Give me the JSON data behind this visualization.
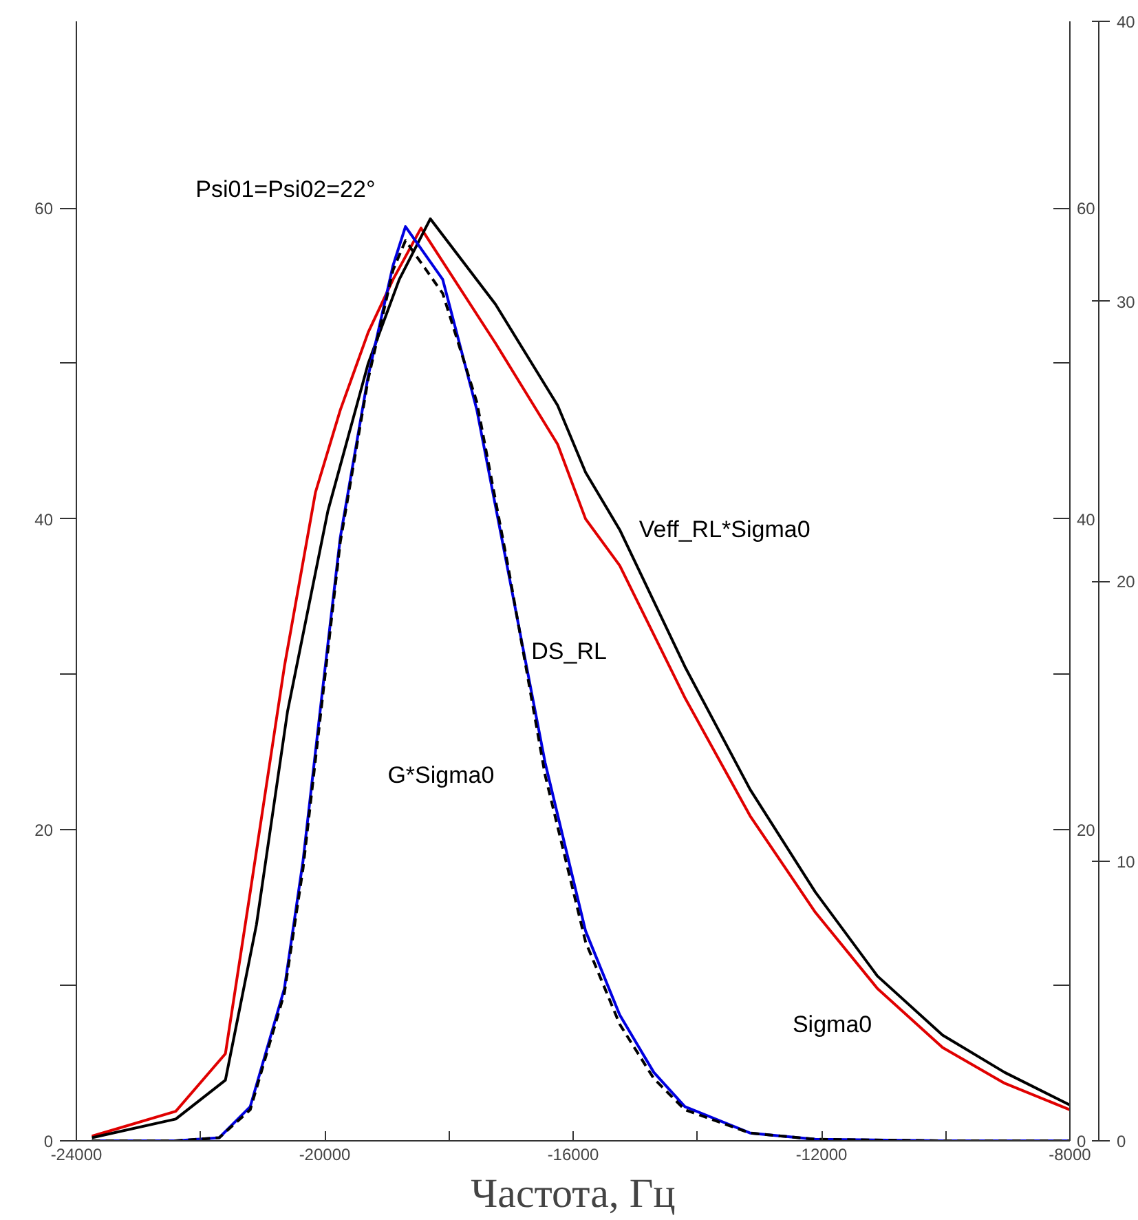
{
  "chart_data": {
    "type": "line",
    "xlabel": "Частота, Гц",
    "xlim": [
      -24000,
      -8000
    ],
    "xticks": [
      -24000,
      {
        "value": -22000,
        "label": null
      },
      -20000,
      {
        "value": -18000,
        "label": null
      },
      -16000,
      {
        "value": -14000,
        "label": null
      },
      -12000,
      {
        "value": -10000,
        "label": null
      },
      -8000
    ],
    "ylim": [
      0,
      72
    ],
    "yticks": [
      0,
      {
        "value": 10,
        "label": null
      },
      20,
      {
        "value": 30,
        "label": null
      },
      40,
      {
        "value": 50,
        "label": null
      },
      60
    ],
    "y2lim": [
      0,
      72
    ],
    "y2ticks": [
      0,
      {
        "value": 10,
        "label": null
      },
      20,
      {
        "value": 30,
        "label": null
      },
      40,
      {
        "value": 50,
        "label": null
      },
      60
    ],
    "y3lim": [
      0,
      40
    ],
    "y3ticks": [
      0,
      10,
      20,
      30,
      40
    ],
    "series": [
      {
        "name": "Sigma0",
        "color": "#e00000",
        "line_style": "solid",
        "x": [
          -23750,
          -22400,
          -21600,
          -21200,
          -20650,
          -20150,
          -19750,
          -19300,
          -18900,
          -18450,
          -17250,
          -16250,
          -15800,
          -15250,
          -14200,
          -13150,
          -12100,
          -11100,
          -10050,
          -9050,
          -8000
        ],
        "values": [
          0.3,
          1.9,
          5.6,
          16,
          30.5,
          41.7,
          47,
          52,
          55.4,
          58.7,
          51.3,
          44.8,
          40,
          37,
          28.5,
          20.9,
          14.7,
          9.8,
          6,
          3.7,
          2.0
        ]
      },
      {
        "name": "Veff_RL*Sigma0",
        "color": "#000000",
        "line_style": "solid",
        "x": [
          -23750,
          -22400,
          -21600,
          -21100,
          -20600,
          -19950,
          -19300,
          -18800,
          -18300,
          -17250,
          -16250,
          -15800,
          -15250,
          -14200,
          -13150,
          -12100,
          -11100,
          -10050,
          -9050,
          -8000
        ],
        "values": [
          0.2,
          1.4,
          3.9,
          13.9,
          27.6,
          40.5,
          50,
          55.4,
          59.3,
          53.8,
          47.3,
          43,
          39.3,
          30.5,
          22.6,
          16,
          10.6,
          6.8,
          4.4,
          2.3
        ]
      },
      {
        "name": "DS_RL",
        "color": "#0000e0",
        "line_style": "solid",
        "x": [
          -23750,
          -22400,
          -21700,
          -21200,
          -20650,
          -20350,
          -20050,
          -19750,
          -19300,
          -18900,
          -18700,
          -18100,
          -17550,
          -17050,
          -16450,
          -15800,
          -15250,
          -14700,
          -14200,
          -13150,
          -12100,
          -10050,
          -8000
        ],
        "values": [
          0,
          0,
          0.2,
          2.2,
          9.8,
          18,
          28.5,
          38.8,
          49.2,
          56.3,
          58.8,
          55.4,
          47,
          36.7,
          24.3,
          13.5,
          8.1,
          4.4,
          2.2,
          0.5,
          0.1,
          0,
          0
        ]
      },
      {
        "name": "G*Sigma0",
        "color": "#000000",
        "line_style": "dashed",
        "x": [
          -23750,
          -22400,
          -21700,
          -21200,
          -20650,
          -20350,
          -20050,
          -19750,
          -19300,
          -18900,
          -18700,
          -18100,
          -17550,
          -17050,
          -16450,
          -15800,
          -15250,
          -14700,
          -14200,
          -13150,
          -12100,
          -10050,
          -8000
        ],
        "values": [
          0,
          0,
          0.2,
          2.0,
          9.5,
          17.5,
          28,
          38.5,
          49,
          56,
          57.9,
          54.5,
          47.5,
          37,
          23.5,
          12.8,
          7.5,
          4,
          2,
          0.5,
          0.1,
          0,
          0
        ]
      }
    ],
    "annotations": [
      "Psi01=Psi02=22°"
    ]
  }
}
